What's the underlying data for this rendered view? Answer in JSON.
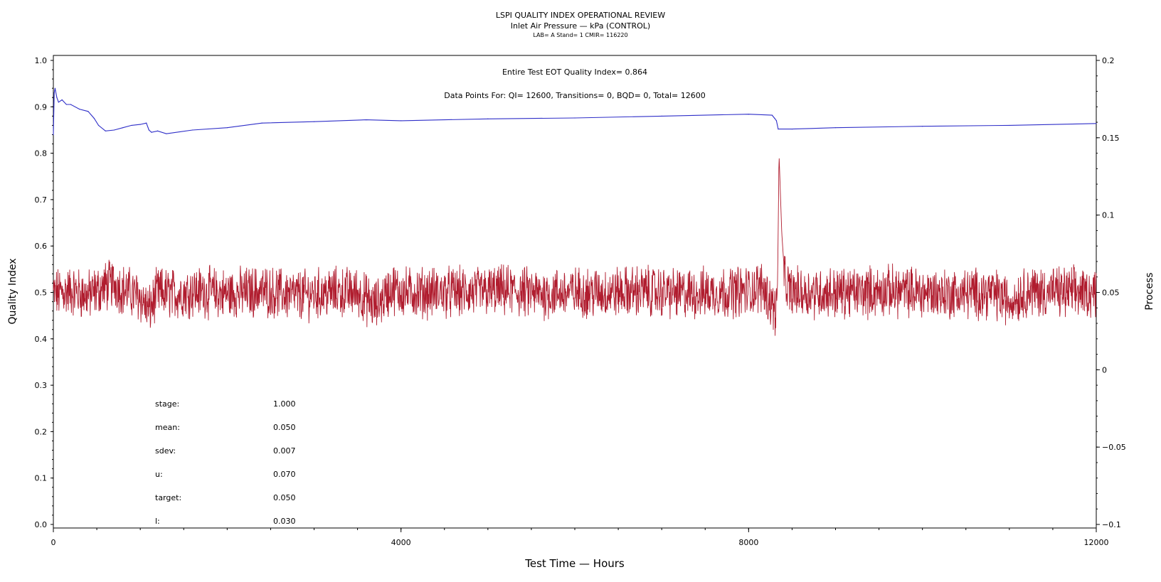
{
  "chart_data": {
    "type": "line",
    "title": "LSPI QUALITY INDEX OPERATIONAL REVIEW",
    "subtitle": "Inlet Air Pressure — kPa (CONTROL)",
    "info_line": "LAB= A Stand= 1 CMIR= 116220",
    "xlabel": "Test Time — Hours",
    "ylabel_left": "Quality Index",
    "ylabel_right": "Process",
    "xlim": [
      0,
      12000
    ],
    "ylim_left": [
      0,
      1
    ],
    "ylim_right": [
      -0.1,
      0.2
    ],
    "x_ticks": [
      "0",
      "4000",
      "8000",
      "12000"
    ],
    "y_ticks_left": [
      "0.0",
      "0.1",
      "0.2",
      "0.3",
      "0.4",
      "0.5",
      "0.6",
      "0.7",
      "0.8",
      "0.9",
      "1.0"
    ],
    "y_ticks_right": [
      "−0.1",
      "−0.05",
      "0",
      "0.05",
      "0.1",
      "0.15",
      "0.2"
    ],
    "annotations": {
      "eot": "Entire Test EOT Quality Index=   0.864",
      "points": "Data Points For: QI= 12600, Transitions=     0, BQD=     0, Total= 12600"
    },
    "stats": [
      {
        "label": "stage:",
        "value": "1.000"
      },
      {
        "label": "mean:",
        "value": "0.050"
      },
      {
        "label": "sdev:",
        "value": "0.007"
      },
      {
        "label": "u:",
        "value": "0.070"
      },
      {
        "label": "target:",
        "value": "0.050"
      },
      {
        "label": "l:",
        "value": "0.030"
      }
    ],
    "series": [
      {
        "axis": "left",
        "color": "#2e2ec8",
        "x": [
          0,
          10,
          20,
          40,
          60,
          100,
          150,
          200,
          300,
          400,
          470,
          520,
          600,
          700,
          800,
          900,
          1000,
          1070,
          1100,
          1130,
          1200,
          1300,
          1600,
          2000,
          2400,
          3000,
          3600,
          4000,
          5000,
          6000,
          7000,
          8000,
          8270,
          8300,
          8320,
          8340,
          8500,
          9000,
          10000,
          11000,
          12000
        ],
        "y": [
          0.84,
          0.93,
          0.94,
          0.92,
          0.91,
          0.915,
          0.905,
          0.905,
          0.895,
          0.89,
          0.875,
          0.86,
          0.848,
          0.85,
          0.855,
          0.86,
          0.862,
          0.865,
          0.85,
          0.845,
          0.848,
          0.842,
          0.85,
          0.855,
          0.865,
          0.868,
          0.872,
          0.87,
          0.874,
          0.876,
          0.88,
          0.884,
          0.882,
          0.875,
          0.87,
          0.852,
          0.852,
          0.855,
          0.858,
          0.86,
          0.864
        ]
      },
      {
        "axis": "right",
        "color": "#b01c2e",
        "x": [
          0,
          200,
          400,
          600,
          700,
          800,
          1000,
          1100,
          1150,
          1200,
          1400,
          1600,
          2000,
          2400,
          2800,
          3200,
          3500,
          3700,
          3800,
          3900,
          4000,
          4400,
          4800,
          5200,
          5600,
          6000,
          6400,
          6800,
          7200,
          7600,
          8000,
          8150,
          8250,
          8300,
          8330,
          8350,
          8380,
          8420,
          8500,
          8800,
          9200,
          9600,
          10000,
          10400,
          10800,
          11000,
          11200,
          11600,
          12000
        ],
        "y": [
          0.049,
          0.051,
          0.048,
          0.054,
          0.056,
          0.052,
          0.047,
          0.038,
          0.044,
          0.05,
          0.049,
          0.051,
          0.049,
          0.051,
          0.048,
          0.05,
          0.05,
          0.041,
          0.047,
          0.053,
          0.05,
          0.05,
          0.05,
          0.051,
          0.049,
          0.05,
          0.05,
          0.051,
          0.049,
          0.05,
          0.051,
          0.054,
          0.045,
          0.038,
          0.042,
          0.14,
          0.09,
          0.055,
          0.05,
          0.05,
          0.05,
          0.051,
          0.05,
          0.049,
          0.05,
          0.044,
          0.051,
          0.05,
          0.05
        ]
      }
    ],
    "grid": false
  }
}
